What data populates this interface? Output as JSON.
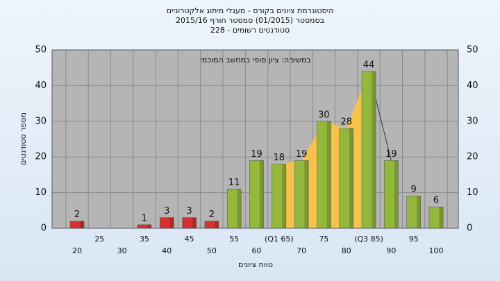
{
  "chart_data": {
    "type": "bar",
    "title": "היסטוגרמת ציונים בקורס - מעגלי מיתוג אלקטרוניים",
    "subtitle": "בסמסטר  (01/2015)  סמסטר חורף 2015/16",
    "subtitle2": "סטודנטים רשומים - 228",
    "annotation": "במשימה: ציון סופי במחשב המוכמי",
    "x_label": "טווח ציונים",
    "y_label": "מספר סטודנטים",
    "categories": [
      "20",
      "25",
      "30",
      "35",
      "40",
      "45",
      "50",
      "55",
      "60",
      "(Q1 65)",
      "70",
      "75",
      "80",
      "(Q3 85)",
      "90",
      "95",
      "100"
    ],
    "values": [
      2,
      null,
      null,
      1,
      3,
      3,
      2,
      11,
      19,
      18,
      19,
      30,
      28,
      44,
      19,
      9,
      6
    ],
    "colors": [
      "#d8302e",
      "#d8302e",
      "#d8302e",
      "#d8302e",
      "#d8302e",
      "#d8302e",
      "#d8302e",
      "#93b83c",
      "#93b83c",
      "#93b83c",
      "#93b83c",
      "#93b83c",
      "#93b83c",
      "#93b83c",
      "#93b83c",
      "#93b83c",
      "#93b83c"
    ],
    "iqr_color": "#f5c24c",
    "ylim": [
      0,
      50
    ],
    "yticks": [
      0,
      10,
      20,
      30,
      40,
      50
    ],
    "grid": true
  }
}
